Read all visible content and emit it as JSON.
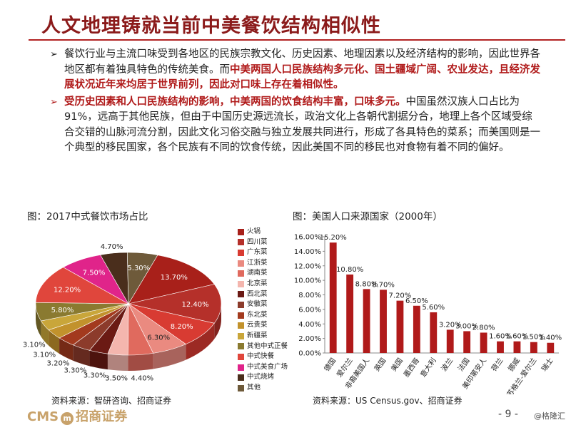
{
  "slide": {
    "title": "人文地理铸就当前中美餐饮结构相似性",
    "bullet1_plain": "餐饮行业与主流口味受到各地区的民族宗教文化、历史因素、地理因素以及经济结构的影响，因此世界各地区都有着独具特色的传统美食。而",
    "bullet1_red": "中美两国人口民族结构多元化、国土疆域广阔、农业发达，且经济发展状况近年来均居于世界前列，因此对口味上存在着相似性。",
    "bullet2_red": "受历史因素和人口民族结构的影响，中美两国的饮食结构丰富，口味多元。",
    "bullet2_plain": "中国虽然汉族人口占比为91%，远高于其他民族，但由于中国历史源远流长，政治文化上各朝代割据分合，地理上各个区域受综合交错的山脉河流分割，因此文化习俗交融与独立发展共同进行，形成了各具特色的菜系；而美国则是一个典型的移民国家，各个民族有不同的饮食传统，因此美国不同的移民也对食物有着不同的偏好。",
    "page_number": "- 9 -",
    "logo_text_left": "CMS",
    "logo_circle": "m",
    "logo_text_right": "招商证券",
    "watermark": "@格隆汇"
  },
  "chart_data": [
    {
      "type": "pie",
      "title": "图：2017中式餐饮市场占比",
      "source": "资料来源：智研咨询、招商证券",
      "categories": [
        "火锅",
        "四川菜",
        "广东菜",
        "江浙菜",
        "湖南菜",
        "北京菜",
        "西北菜",
        "安徽菜",
        "东北菜",
        "云贵菜",
        "新疆菜",
        "其他中式正餐",
        "中式快餐",
        "中式美食广场",
        "中式烧烤",
        "其他"
      ],
      "values": [
        13.7,
        12.4,
        8.2,
        6.3,
        4.4,
        3.5,
        3.3,
        3.3,
        3.2,
        3.1,
        3.1,
        5.8,
        12.2,
        7.5,
        4.7,
        5.3
      ],
      "labels": [
        "13.70%",
        "12.40%",
        "8.20%",
        "6.30%",
        "4.40%",
        "3.50%",
        "3.30%",
        "3.30%",
        "3.20%",
        "3.10%",
        "3.10%",
        "5.80%",
        "12.20%",
        "7.50%",
        "4.70%",
        "5.30%"
      ],
      "colors": [
        "#a8201a",
        "#b5302a",
        "#d83b32",
        "#ea8a80",
        "#e06a5e",
        "#f4b6ae",
        "#6b1a14",
        "#8c3b2b",
        "#a33a1e",
        "#c2922c",
        "#c9a63a",
        "#8a7a30",
        "#e0463c",
        "#e0248a",
        "#4a2e1c",
        "#6e5a3a"
      ],
      "legend_position": "right"
    },
    {
      "type": "bar",
      "title": "图：美国人口来源国家（2000年）",
      "source": "资料来源：US Census.gov、招商证券",
      "categories": [
        "德国",
        "爱尔兰",
        "非裔美国人",
        "英国",
        "美国",
        "墨西哥",
        "意大利",
        "波兰",
        "法国",
        "美印第安人",
        "荷兰",
        "挪威",
        "苏格兰-爱尔兰",
        "瑞士"
      ],
      "values": [
        15.2,
        10.8,
        8.8,
        8.7,
        7.2,
        6.5,
        5.6,
        3.2,
        3.0,
        2.8,
        1.6,
        1.6,
        1.5,
        1.4
      ],
      "labels": [
        "15.20%",
        "10.80%",
        "8.80%",
        "8.70%",
        "7.20%",
        "6.50%",
        "5.60%",
        "3.20%",
        "3.00%",
        "2.80%",
        "1.60%",
        "1.60%",
        "1.50%",
        "1.40%"
      ],
      "ylim": [
        0,
        16
      ],
      "yticks": [
        "0.00%",
        "2.00%",
        "4.00%",
        "6.00%",
        "8.00%",
        "10.00%",
        "12.00%",
        "14.00%",
        "16.00%"
      ],
      "bar_color": "#b01a1a",
      "grid": false
    }
  ]
}
